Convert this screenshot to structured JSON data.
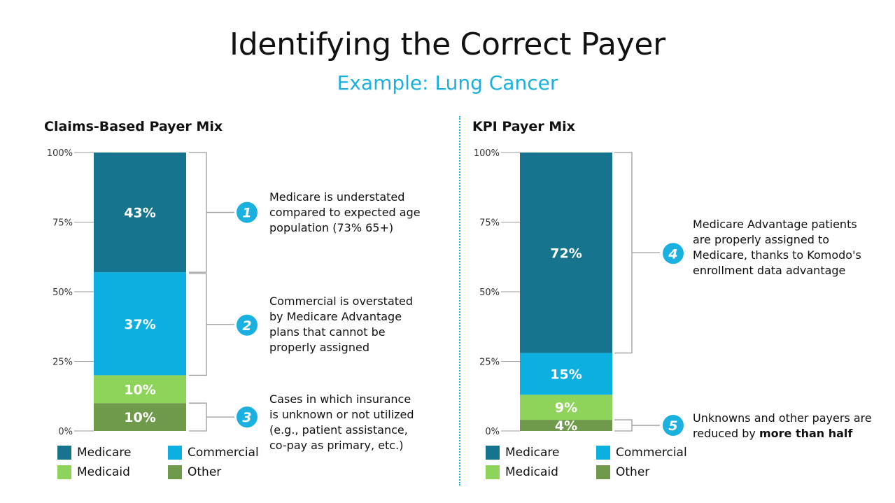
{
  "title": "Identifying the Correct Payer",
  "subtitle": "Example: Lung Cancer",
  "colors": {
    "medicare": "#17748f",
    "commercial": "#0cb0e0",
    "medicaid": "#8fd45a",
    "other": "#6f9a4c",
    "accent": "#1ab0e0"
  },
  "legend": {
    "medicare": "Medicare",
    "commercial": "Commercial",
    "medicaid": "Medicaid",
    "other": "Other"
  },
  "chart_data": [
    {
      "type": "bar",
      "stacked": true,
      "title": "Claims-Based Payer Mix",
      "ylim": [
        0,
        100
      ],
      "yticks": [
        "0%",
        "25%",
        "50%",
        "75%",
        "100%"
      ],
      "series": [
        {
          "name": "Other",
          "value": 10,
          "label": "10%"
        },
        {
          "name": "Medicaid",
          "value": 10,
          "label": "10%"
        },
        {
          "name": "Commercial",
          "value": 37,
          "label": "37%"
        },
        {
          "name": "Medicare",
          "value": 43,
          "label": "43%"
        }
      ],
      "callouts": [
        {
          "number": "1",
          "lines": [
            "Medicare is understated",
            "compared to expected age",
            "population (73% 65+)"
          ]
        },
        {
          "number": "2",
          "lines": [
            "Commercial is overstated",
            "by Medicare Advantage",
            "plans that cannot be",
            "properly assigned"
          ]
        },
        {
          "number": "3",
          "lines": [
            "Cases in which insurance",
            "is unknown or not utilized",
            "(e.g., patient assistance,",
            "co-pay as primary, etc.)"
          ]
        }
      ]
    },
    {
      "type": "bar",
      "stacked": true,
      "title": "KPI Payer Mix",
      "ylim": [
        0,
        100
      ],
      "yticks": [
        "0%",
        "25%",
        "50%",
        "75%",
        "100%"
      ],
      "series": [
        {
          "name": "Other",
          "value": 4,
          "label": "4%"
        },
        {
          "name": "Medicaid",
          "value": 9,
          "label": "9%"
        },
        {
          "name": "Commercial",
          "value": 15,
          "label": "15%"
        },
        {
          "name": "Medicare",
          "value": 72,
          "label": "72%"
        }
      ],
      "callouts": [
        {
          "number": "4",
          "lines": [
            "Medicare Advantage patients",
            "are properly assigned to",
            "Medicare,  thanks to Komodo's",
            "enrollment data advantage"
          ]
        },
        {
          "number": "5",
          "lines": [
            "Unknowns and other payers are",
            "reduced by "
          ],
          "bold": "more than half"
        }
      ]
    }
  ]
}
